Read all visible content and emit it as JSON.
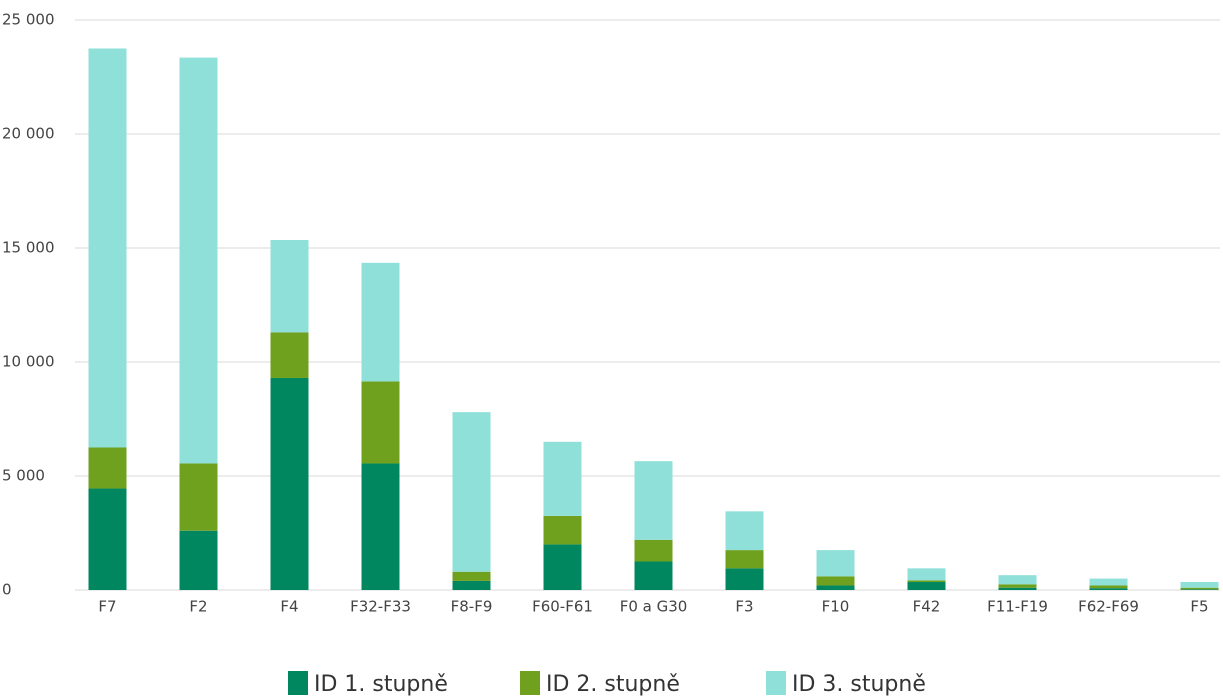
{
  "chart_data": {
    "type": "bar",
    "stacked": true,
    "categories": [
      "F7",
      "F2",
      "F4",
      "F32-F33",
      "F8-F9",
      "F60-F61",
      "F0 a G30",
      "F3",
      "F10",
      "F42",
      "F11-F19",
      "F62-F69",
      "F5"
    ],
    "series": [
      {
        "name": "ID 1. stupně",
        "color": "#008760",
        "values": [
          4450,
          2600,
          9300,
          5550,
          400,
          2000,
          1250,
          950,
          200,
          350,
          100,
          80,
          30
        ]
      },
      {
        "name": "ID 2. stupně",
        "color": "#6fa01e",
        "values": [
          1800,
          2950,
          2000,
          3600,
          400,
          1250,
          950,
          800,
          400,
          70,
          150,
          120,
          70
        ]
      },
      {
        "name": "ID 3. stupně",
        "color": "#8fe0d9",
        "values": [
          17500,
          17800,
          4050,
          5200,
          7000,
          3250,
          3450,
          1700,
          1150,
          530,
          400,
          300,
          250
        ]
      }
    ],
    "ylim": [
      0,
      25000
    ],
    "yticks": [
      0,
      {
        "value": 5000,
        "label": "5 000"
      },
      {
        "value": 10000,
        "label": "10 000"
      },
      {
        "value": 15000,
        "label": "15 000"
      },
      {
        "value": 20000,
        "label": "20 000"
      },
      {
        "value": 25000,
        "label": "25 000"
      }
    ],
    "grid": true,
    "legend": "bottom"
  }
}
